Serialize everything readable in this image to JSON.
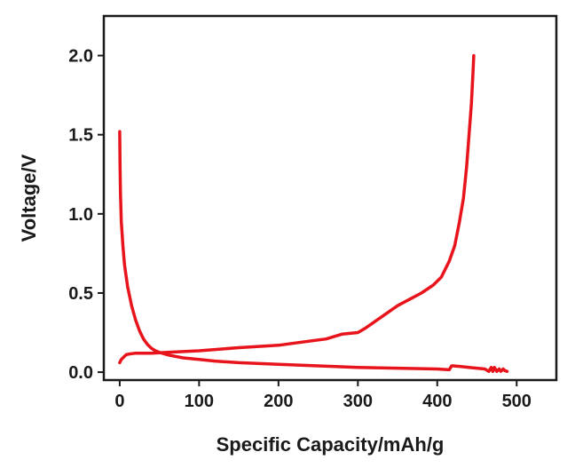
{
  "chart_data": {
    "type": "line",
    "title": "",
    "xlabel": "Specific Capacity/mAh/g",
    "ylabel": "Voltage/V",
    "xlim": [
      -20,
      550
    ],
    "ylim": [
      -0.05,
      2.25
    ],
    "x_ticks": [
      0,
      100,
      200,
      300,
      400,
      500
    ],
    "y_ticks": [
      0.0,
      0.5,
      1.0,
      1.5,
      2.0
    ],
    "x_tick_labels": [
      "0",
      "100",
      "200",
      "300",
      "400",
      "500"
    ],
    "y_tick_labels": [
      "0.0",
      "0.5",
      "1.0",
      "1.5",
      "2.0"
    ],
    "grid": false,
    "legend": "none",
    "line_color": "#e8141b",
    "series": [
      {
        "x": [
          0,
          0.5,
          1,
          2,
          4,
          6,
          10,
          15,
          20,
          25,
          30,
          35,
          40,
          45,
          50,
          60,
          70,
          80,
          100,
          120,
          150,
          200,
          250,
          300,
          350,
          400,
          415,
          418,
          420,
          430,
          440,
          450,
          460,
          465,
          468,
          470,
          472,
          475,
          478,
          480,
          483,
          485,
          488
        ],
        "y": [
          1.52,
          1.3,
          1.12,
          0.95,
          0.8,
          0.68,
          0.54,
          0.42,
          0.33,
          0.26,
          0.21,
          0.175,
          0.15,
          0.135,
          0.125,
          0.11,
          0.1,
          0.09,
          0.08,
          0.07,
          0.06,
          0.05,
          0.04,
          0.03,
          0.025,
          0.02,
          0.015,
          0.04,
          0.04,
          0.035,
          0.03,
          0.025,
          0.02,
          0.005,
          0.03,
          0.005,
          0.03,
          0.005,
          0.02,
          0.005,
          0.02,
          0.01,
          0.005
        ]
      },
      {
        "x": [
          0,
          2,
          4,
          8,
          12,
          20,
          30,
          40,
          60,
          80,
          100,
          150,
          200,
          230,
          260,
          280,
          300,
          310,
          330,
          350,
          365,
          380,
          395,
          405,
          415,
          422,
          428,
          433,
          437,
          440,
          443,
          445,
          446
        ],
        "y": [
          0.06,
          0.08,
          0.09,
          0.11,
          0.115,
          0.12,
          0.12,
          0.12,
          0.125,
          0.13,
          0.135,
          0.155,
          0.17,
          0.19,
          0.21,
          0.24,
          0.25,
          0.28,
          0.35,
          0.42,
          0.46,
          0.5,
          0.55,
          0.6,
          0.7,
          0.8,
          0.95,
          1.1,
          1.3,
          1.5,
          1.7,
          1.9,
          2.0
        ]
      }
    ]
  }
}
